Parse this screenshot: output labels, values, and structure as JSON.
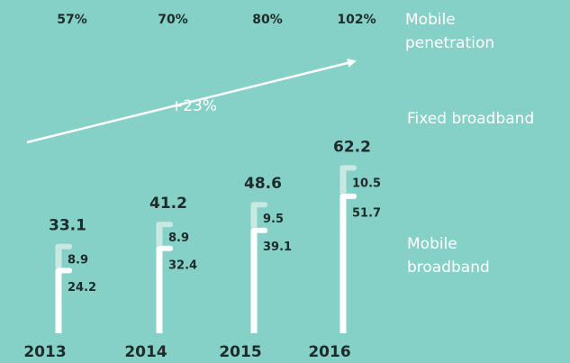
{
  "chart_data": {
    "type": "bar",
    "categories": [
      "2013",
      "2014",
      "2015",
      "2016"
    ],
    "series": [
      {
        "name": "Mobile broadband",
        "color": "#ffffff",
        "values": [
          24.2,
          32.4,
          39.1,
          51.7
        ]
      },
      {
        "name": "Fixed broadband",
        "color": "#c9e8e2",
        "values": [
          8.9,
          8.9,
          9.5,
          10.5
        ]
      }
    ],
    "totals": [
      33.1,
      41.2,
      48.6,
      62.2
    ],
    "penetration": {
      "name": "Mobile penetration",
      "values": [
        57,
        70,
        80,
        102
      ],
      "value_labels": [
        "57%",
        "70%",
        "80%",
        "102%"
      ]
    },
    "annotation": "+23%"
  }
}
